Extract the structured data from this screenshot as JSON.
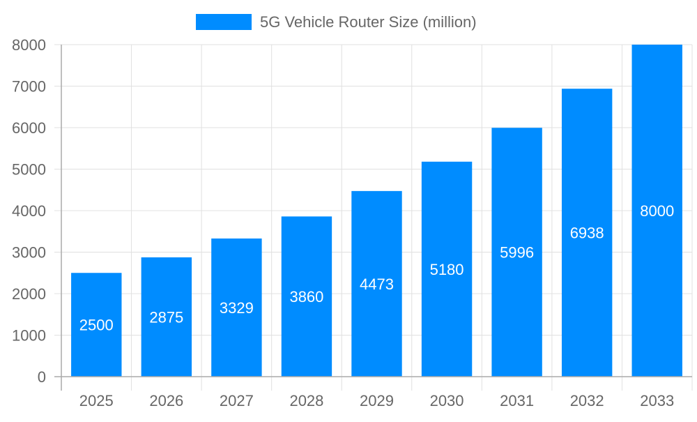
{
  "chart_data": {
    "type": "bar",
    "title": "",
    "xlabel": "",
    "ylabel": "",
    "categories": [
      "2025",
      "2026",
      "2027",
      "2028",
      "2029",
      "2030",
      "2031",
      "2032",
      "2033"
    ],
    "series": [
      {
        "name": "5G Vehicle Router Size (million)",
        "values": [
          2500,
          2875,
          3329,
          3860,
          4473,
          5180,
          5996,
          6938,
          8000
        ],
        "color": "#008CFF"
      }
    ],
    "ylim": [
      0,
      8000
    ],
    "yticks": [
      0,
      1000,
      2000,
      3000,
      4000,
      5000,
      6000,
      7000,
      8000
    ],
    "grid": true,
    "legend": "top-center",
    "data_labels": true,
    "colors": {
      "text": "#666666",
      "grid": "#e0e0e0",
      "axis": "#aaaaaa",
      "label": "#ffffff"
    }
  }
}
